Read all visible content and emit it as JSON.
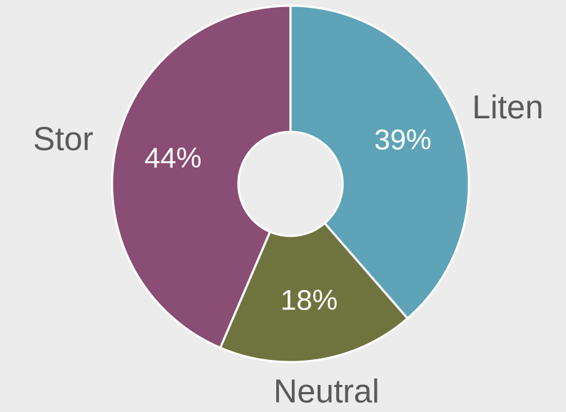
{
  "chart_data": {
    "type": "donut",
    "categories": [
      "Liten",
      "Neutral",
      "Stor"
    ],
    "values": [
      39,
      18,
      44
    ],
    "value_labels": [
      "39%",
      "18%",
      "44%"
    ],
    "colors": [
      "#5ea3b7",
      "#6f743f",
      "#8a4d73"
    ]
  }
}
